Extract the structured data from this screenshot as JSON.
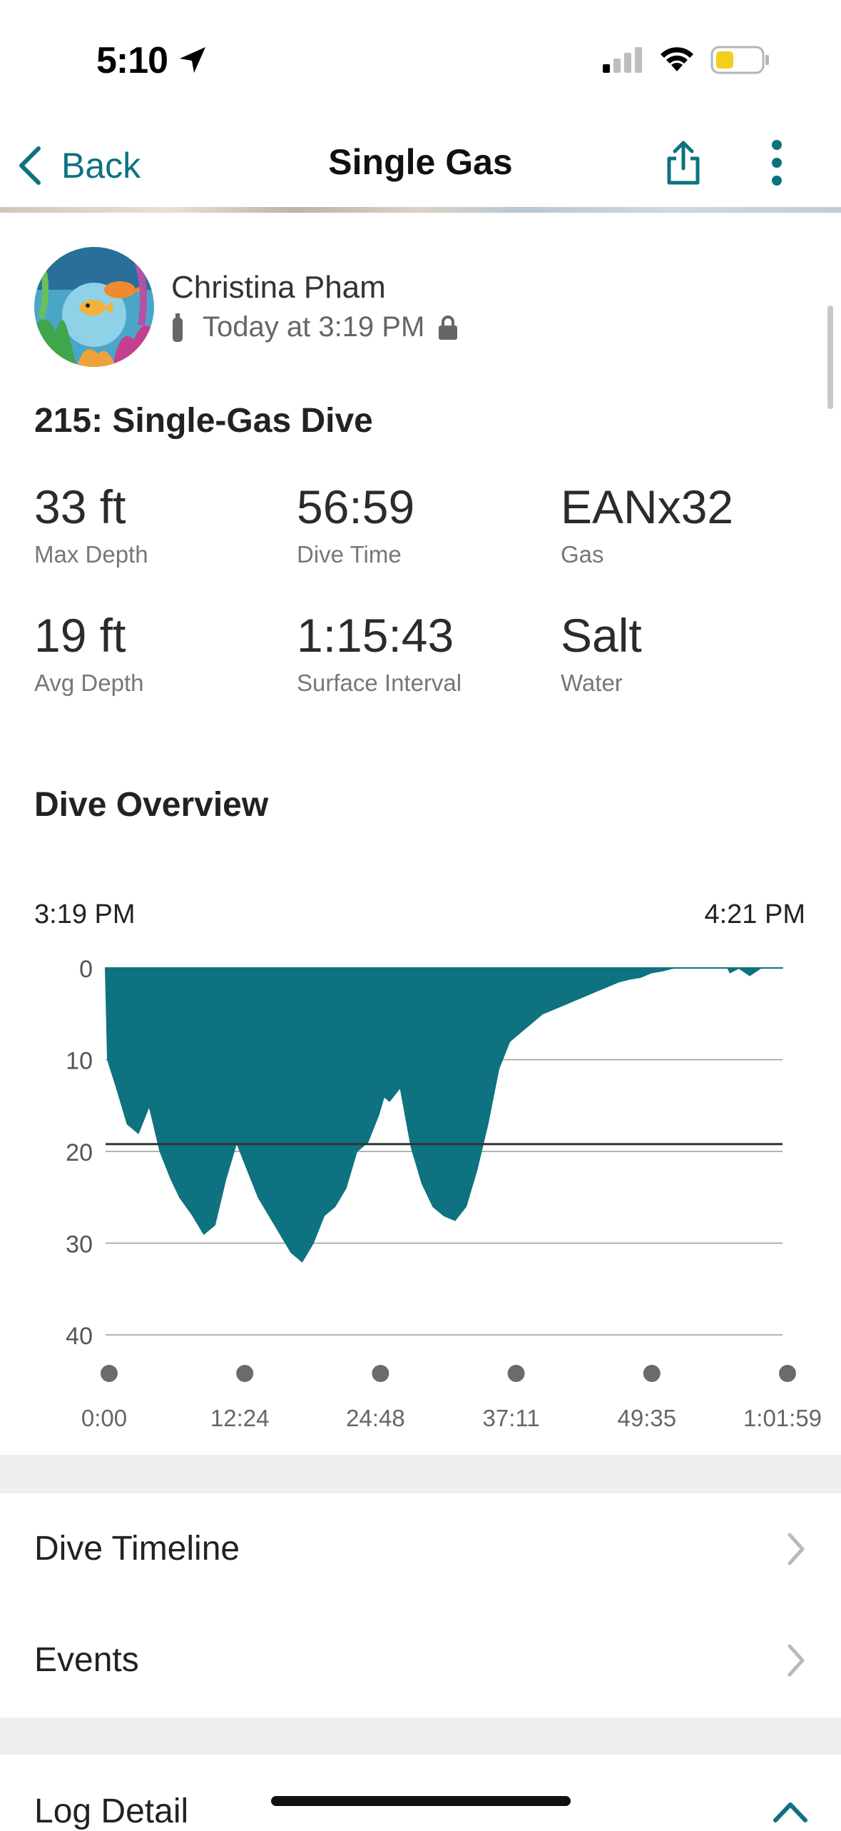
{
  "status_bar": {
    "time": "5:10"
  },
  "nav": {
    "back_label": "Back",
    "title": "Single Gas"
  },
  "dive": {
    "user_name": "Christina Pham",
    "date_text": "Today at 3:19 PM",
    "title": "215: Single-Gas Dive",
    "stats": [
      {
        "value": "33 ft",
        "label": "Max Depth"
      },
      {
        "value": "56:59",
        "label": "Dive Time"
      },
      {
        "value": "EANx32",
        "label": "Gas"
      },
      {
        "value": "19 ft",
        "label": "Avg Depth"
      },
      {
        "value": "1:15:43",
        "label": "Surface Interval"
      },
      {
        "value": "Salt",
        "label": "Water"
      }
    ]
  },
  "overview": {
    "title": "Dive Overview",
    "start_time": "3:19 PM",
    "end_time": "4:21 PM"
  },
  "chart_data": {
    "type": "area",
    "ylim": [
      0,
      40
    ],
    "y_inverted": true,
    "y_ticks": [
      0,
      10,
      20,
      30,
      40
    ],
    "x_tick_labels": [
      "0:00",
      "12:24",
      "24:48",
      "37:11",
      "49:35",
      "1:01:59"
    ],
    "x_range_minutes": [
      0,
      62
    ],
    "avg_depth": 19.2,
    "grid": true,
    "series": [
      {
        "color": "#0e7280",
        "x": [
          0,
          0.2,
          1,
          2,
          3,
          4,
          5,
          6,
          6.8,
          8,
          9,
          10,
          11,
          12,
          13,
          14,
          15,
          16,
          17,
          18,
          19,
          20,
          21,
          22,
          23,
          24,
          25,
          25.5,
          26,
          27,
          28,
          29,
          30,
          31,
          32,
          33,
          34,
          35,
          36,
          37,
          38,
          39,
          40,
          41,
          42,
          43,
          44,
          45,
          46,
          47,
          48,
          49,
          50,
          51,
          52,
          53,
          54,
          55,
          56,
          57,
          57.2,
          58,
          59,
          60,
          62
        ],
        "y": [
          0,
          10,
          13,
          17,
          18,
          15,
          20,
          23,
          25,
          27,
          29,
          28,
          23,
          19,
          22,
          25,
          27,
          29,
          31,
          32,
          30,
          27,
          26,
          24,
          20,
          19,
          16,
          14,
          14.5,
          13,
          19.5,
          23.5,
          26,
          27,
          27.5,
          26,
          22,
          17,
          11,
          8,
          7,
          6,
          5,
          4.5,
          4,
          3.5,
          3,
          2.5,
          2,
          1.5,
          1.2,
          1,
          0.5,
          0.3,
          0,
          0,
          0,
          0,
          0,
          0,
          0.5,
          0,
          0.8,
          0,
          0
        ]
      }
    ]
  },
  "list": {
    "timeline_label": "Dive Timeline",
    "events_label": "Events",
    "log_detail_label": "Log Detail"
  }
}
